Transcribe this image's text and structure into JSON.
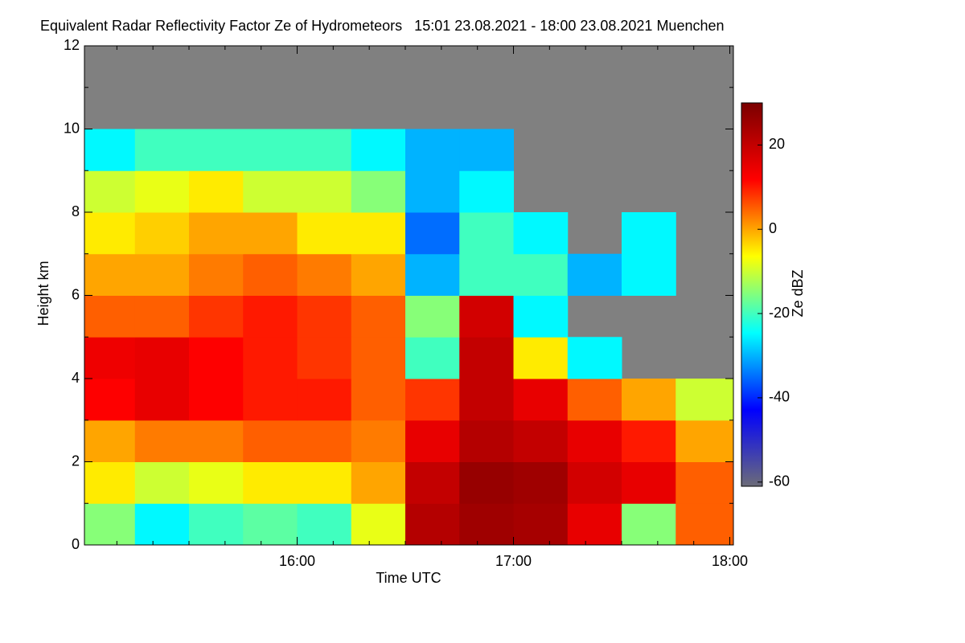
{
  "chart_data": {
    "type": "heatmap",
    "title": "Equivalent Radar Reflectivity Factor Ze of Hydrometeors   15:01 23.08.2021 - 18:00 23.08.2021 Muenchen",
    "x_label": "Time UTC",
    "y_label": "Height km",
    "colorbar_label": "Ze dBZ",
    "x_edges": [
      901,
      915,
      930,
      945,
      960,
      975,
      990,
      1005,
      1020,
      1035,
      1050,
      1065,
      1081
    ],
    "y_edges": [
      0,
      1,
      2,
      3,
      4,
      5,
      6,
      7,
      8,
      9,
      10,
      11,
      12
    ],
    "z": [
      [
        -15,
        -25,
        -20,
        -18,
        -20,
        -8,
        22,
        25,
        24,
        15,
        -15,
        5
      ],
      [
        -5,
        -10,
        -8,
        -5,
        -5,
        0,
        20,
        26,
        25,
        18,
        15,
        5
      ],
      [
        0,
        3,
        3,
        5,
        5,
        3,
        15,
        22,
        20,
        15,
        10,
        0
      ],
      [
        12,
        15,
        12,
        10,
        10,
        5,
        8,
        20,
        15,
        5,
        0,
        -10
      ],
      [
        14,
        15,
        12,
        10,
        8,
        5,
        -20,
        20,
        -5,
        -25,
        null,
        null
      ],
      [
        5,
        5,
        8,
        10,
        8,
        5,
        -15,
        18,
        -25,
        null,
        null,
        null
      ],
      [
        0,
        0,
        3,
        5,
        3,
        0,
        -30,
        -20,
        -20,
        -30,
        -25,
        null
      ],
      [
        -5,
        -3,
        0,
        0,
        -5,
        -5,
        -35,
        -20,
        -25,
        null,
        -25,
        null
      ],
      [
        -10,
        -8,
        -5,
        -10,
        -10,
        -15,
        -30,
        -25,
        null,
        null,
        null,
        null
      ],
      [
        -25,
        -20,
        -20,
        -20,
        -20,
        -25,
        -30,
        -30,
        null,
        null,
        null,
        null
      ],
      [
        null,
        null,
        null,
        null,
        null,
        null,
        null,
        null,
        null,
        null,
        null,
        null
      ],
      [
        null,
        null,
        null,
        null,
        null,
        null,
        null,
        null,
        null,
        null,
        null,
        null
      ]
    ],
    "xlim": [
      901,
      1081
    ],
    "xticks": [
      {
        "value": 960,
        "label": "16:00"
      },
      {
        "value": 1020,
        "label": "17:00"
      },
      {
        "value": 1080,
        "label": "18:00"
      }
    ],
    "xminorticks": [
      910,
      920,
      930,
      940,
      950,
      970,
      980,
      990,
      1000,
      1010,
      1030,
      1040,
      1050,
      1060,
      1070
    ],
    "ylim": [
      0,
      12
    ],
    "yticks": [
      0,
      2,
      4,
      6,
      8,
      10,
      12
    ],
    "yminorticks": [
      1,
      3,
      5,
      7,
      9,
      11
    ],
    "clim": [
      -61,
      30
    ],
    "cticks": [
      20,
      0,
      -20,
      -40,
      -60
    ],
    "colormap": [
      "#6c6c78",
      "#0000ff",
      "#00ffff",
      "#ffff00",
      "#ff0000",
      "#7a0000"
    ],
    "missing_color": "#808080"
  }
}
